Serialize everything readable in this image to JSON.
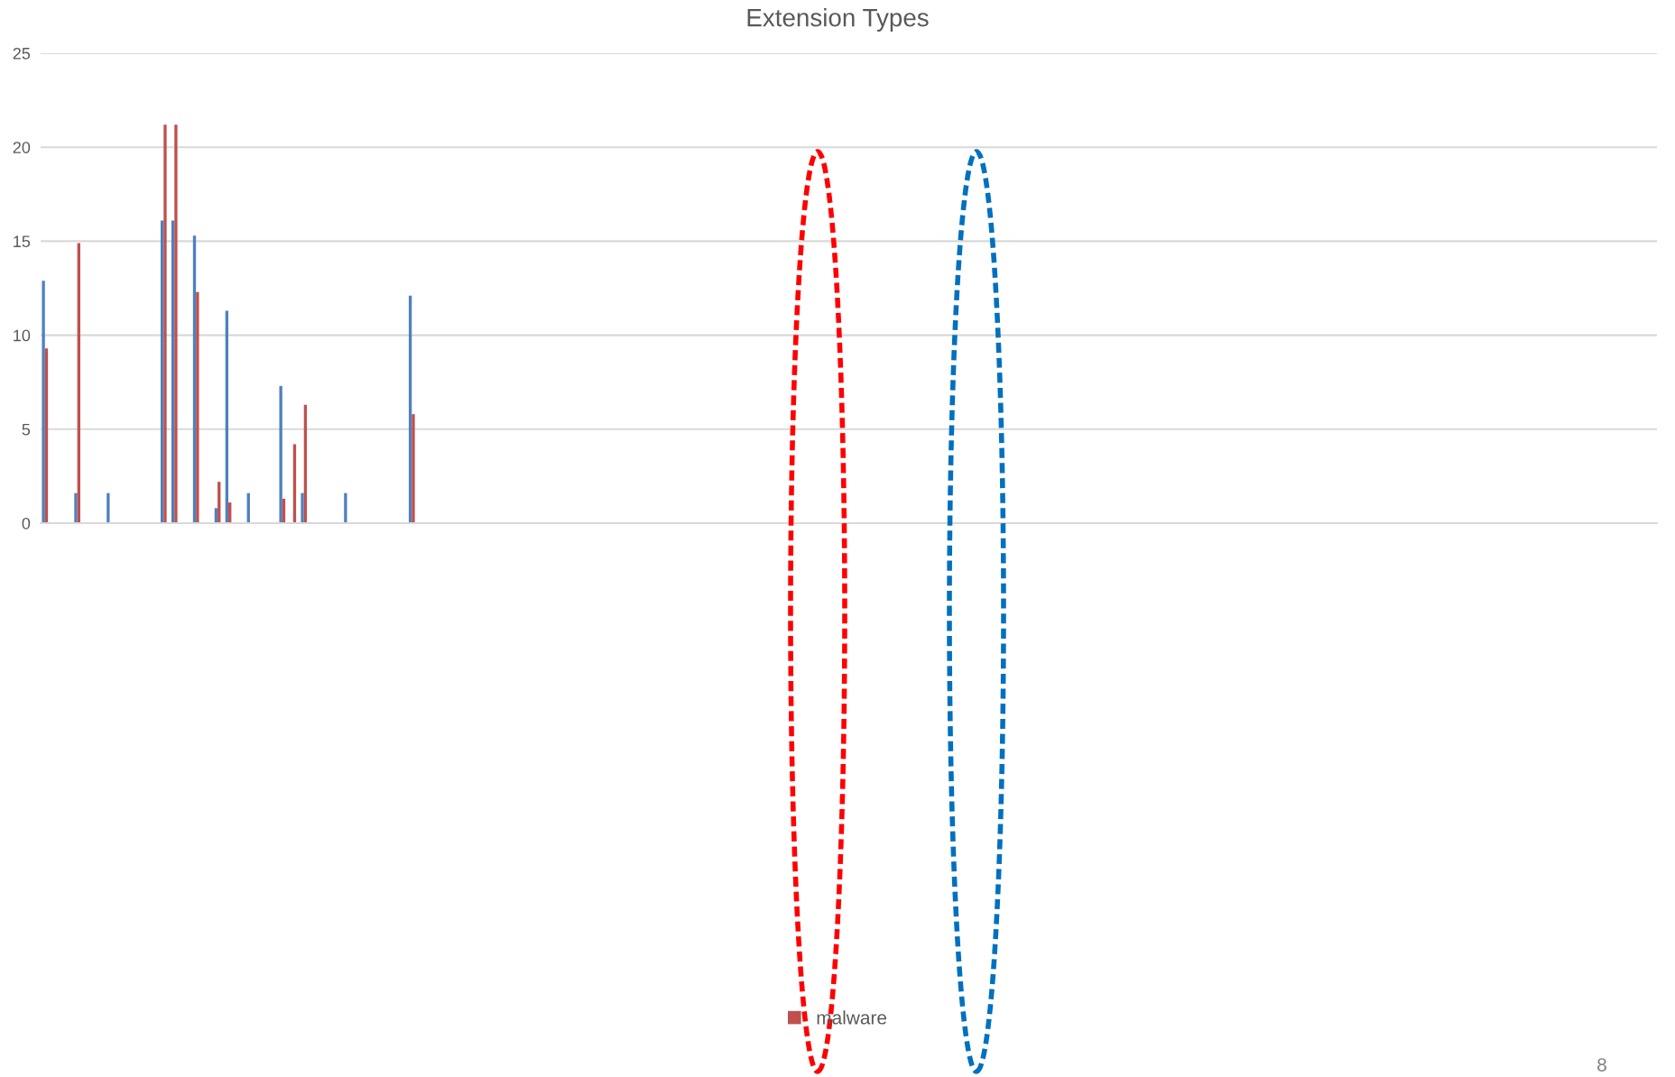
{
  "chart_data": {
    "type": "bar",
    "title": "Extension Types",
    "categories": [
      null,
      null,
      null,
      null,
      null,
      null,
      null,
      null,
      null,
      null,
      null,
      null,
      null,
      null,
      null,
      null,
      null,
      null,
      null,
      null,
      null,
      null,
      null,
      null,
      null,
      null,
      null,
      null,
      null,
      null,
      null,
      null,
      null,
      null,
      null,
      null,
      null,
      null,
      null,
      null,
      null,
      null,
      null,
      null,
      null,
      null,
      null,
      null,
      null,
      null,
      null,
      null,
      null,
      null,
      null,
      null,
      null,
      null,
      null,
      null,
      null,
      null,
      null,
      null,
      null,
      null,
      null,
      null,
      null,
      null,
      null,
      null,
      null,
      null,
      null,
      null,
      null,
      null,
      null,
      null,
      null,
      null,
      null,
      null,
      null,
      null,
      null,
      null,
      null,
      null,
      null,
      null,
      null,
      null,
      null,
      null,
      null,
      null,
      null,
      null,
      null,
      null,
      null,
      null,
      null,
      null,
      null,
      null,
      null,
      null,
      null,
      null,
      null,
      null,
      null,
      null,
      null,
      null,
      null,
      null,
      null,
      null,
      null,
      null,
      null,
      null,
      null,
      null,
      null,
      null,
      null,
      null,
      null,
      null,
      null,
      null,
      null,
      null,
      null,
      null,
      null,
      null,
      null,
      null,
      null,
      null,
      null,
      null,
      null,
      null
    ],
    "series": [
      {
        "color": "#4f81bd",
        "values": [
          12.9,
          null,
          null,
          1.6,
          null,
          null,
          1.6,
          null,
          null,
          null,
          null,
          16.1,
          16.1,
          null,
          15.3,
          null,
          0.8,
          11.3,
          null,
          1.6,
          null,
          null,
          7.3,
          null,
          1.6,
          null,
          null,
          null,
          1.6,
          null,
          null,
          null,
          null,
          null,
          12.1,
          null,
          null,
          null,
          null,
          null,
          null,
          null,
          null,
          null,
          null,
          null,
          null,
          null,
          null,
          null,
          null,
          null,
          null,
          null,
          null,
          null,
          null,
          null,
          null,
          null,
          null,
          null,
          null,
          null,
          null,
          null,
          null,
          null,
          null,
          null,
          null,
          null,
          null,
          null,
          null,
          null,
          null,
          null,
          null,
          null,
          null,
          null,
          null,
          null,
          null,
          null,
          null,
          null,
          null,
          null,
          null,
          null,
          null,
          null,
          null,
          null,
          null,
          null,
          null,
          null,
          null,
          null,
          null,
          null,
          null,
          null,
          null,
          null,
          null,
          null,
          null,
          null,
          null,
          null,
          null,
          null,
          null,
          null,
          null,
          null,
          null,
          null,
          null,
          null,
          null,
          null,
          null,
          null,
          null,
          null,
          null,
          null,
          null,
          null,
          null,
          null,
          null,
          null,
          null,
          null,
          null,
          null,
          null,
          null,
          null,
          null,
          null,
          null,
          null,
          null
        ]
      },
      {
        "name": "malware",
        "color": "#c0504d",
        "values": [
          9.3,
          null,
          null,
          14.9,
          null,
          null,
          null,
          null,
          null,
          null,
          null,
          21.2,
          21.2,
          null,
          12.3,
          null,
          2.2,
          1.1,
          null,
          null,
          null,
          null,
          1.3,
          4.2,
          6.3,
          null,
          null,
          null,
          null,
          null,
          null,
          null,
          null,
          null,
          5.8,
          null,
          null,
          null,
          null,
          null,
          null,
          null,
          null,
          null,
          null,
          null,
          null,
          null,
          null,
          null,
          null,
          null,
          null,
          null,
          null,
          null,
          null,
          null,
          null,
          null,
          null,
          null,
          null,
          null,
          null,
          null,
          null,
          null,
          null,
          null,
          null,
          null,
          null,
          null,
          null,
          null,
          null,
          null,
          null,
          null,
          null,
          null,
          null,
          null,
          null,
          null,
          null,
          null,
          null,
          null,
          null,
          null,
          null,
          null,
          null,
          null,
          null,
          null,
          null,
          null,
          null,
          null,
          null,
          null,
          null,
          null,
          null,
          null,
          null,
          null,
          null,
          null,
          null,
          null,
          null,
          null,
          null,
          null,
          null,
          null,
          null,
          null,
          null,
          null,
          null,
          null,
          null,
          null,
          null,
          null,
          null,
          null,
          null,
          null,
          null,
          null,
          null,
          null,
          null,
          null,
          null,
          null,
          null,
          null,
          null,
          null,
          null,
          null,
          null,
          null
        ]
      }
    ],
    "ylim": [
      0,
      25
    ],
    "yticks": [
      0,
      5,
      10,
      15,
      20,
      25
    ],
    "grid": "y",
    "legend": "bottom",
    "annotations": [
      "8"
    ]
  }
}
